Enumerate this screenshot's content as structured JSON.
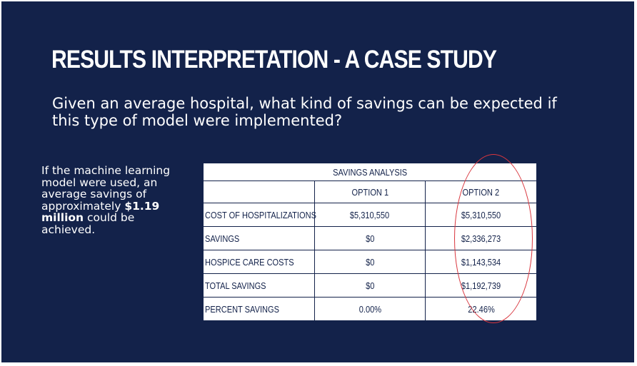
{
  "slide": {
    "title": "RESULTS INTERPRETATION  - A CASE STUDY",
    "subtitle": "Given an average hospital, what kind of savings can be expected if this type of model were implemented?"
  },
  "side_note": {
    "text_before": "If  the machine learning model were used, an average savings of approximately ",
    "highlight": "$1.19 million",
    "text_after": " could be achieved."
  },
  "table": {
    "title": "SAVINGS ANALYSIS",
    "columns": [
      "OPTION 1",
      "OPTION 2"
    ],
    "rows": [
      {
        "label": "COST OF HOSPITALIZATIONS",
        "option1": "$5,310,550",
        "option2": "$5,310,550"
      },
      {
        "label": "SAVINGS",
        "option1": "$0",
        "option2": "$2,336,273"
      },
      {
        "label": "HOSPICE CARE COSTS",
        "option1": "$0",
        "option2": "$1,143,534"
      },
      {
        "label": "TOTAL SAVINGS",
        "option1": "$0",
        "option2": "$1,192,739"
      },
      {
        "label": "PERCENT SAVINGS",
        "option1": "0.00%",
        "option2": "22.46%"
      }
    ]
  },
  "colors": {
    "background": "#13224a",
    "highlight_circle": "#d9363e",
    "table_text": "#13224a"
  }
}
